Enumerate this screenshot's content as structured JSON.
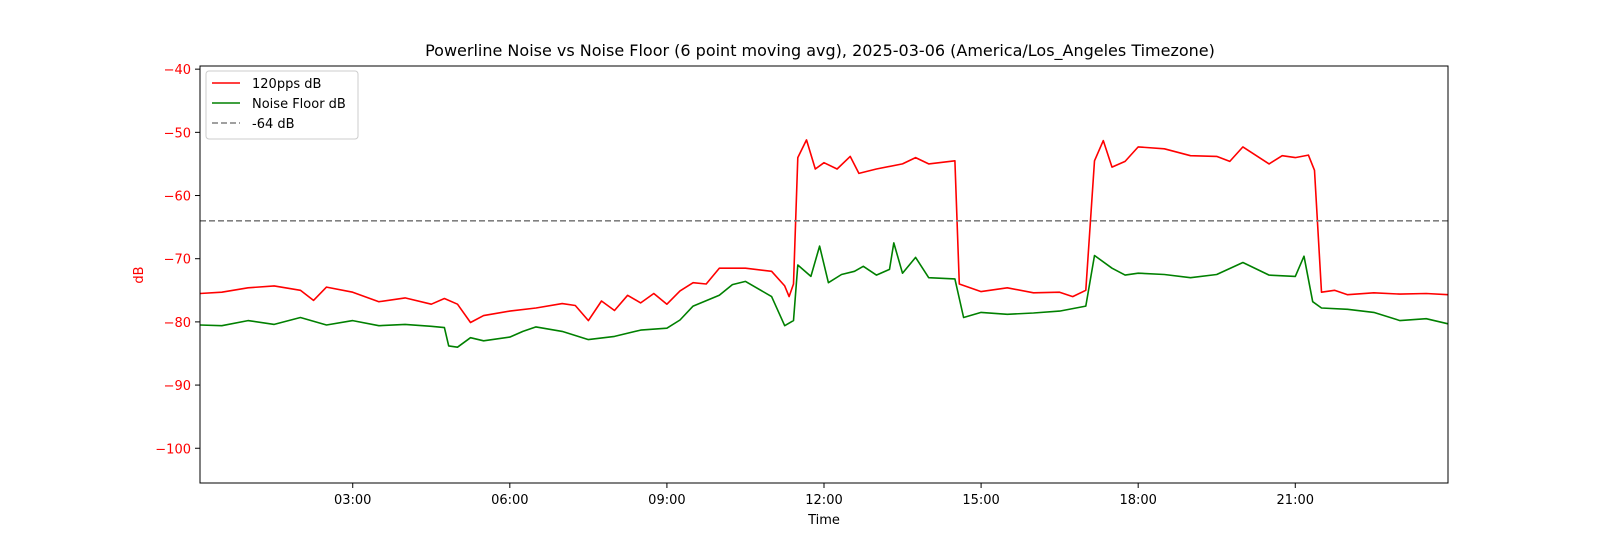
{
  "chart_data": {
    "type": "line",
    "title": "Powerline Noise vs Noise Floor (6 point moving avg), 2025-03-06 (America/Los_Angeles Timezone)",
    "xlabel": "Time",
    "ylabel": "dB",
    "xlim": [
      "00:05",
      "23:55"
    ],
    "ylim": [
      -105.5,
      -39.5
    ],
    "x_ticks": [
      "03:00",
      "06:00",
      "09:00",
      "12:00",
      "15:00",
      "18:00",
      "21:00"
    ],
    "y_ticks": [
      -40,
      -50,
      -60,
      -70,
      -80,
      -90,
      -100
    ],
    "y_tick_labels": [
      "−40",
      "−50",
      "−60",
      "−70",
      "−80",
      "−90",
      "−100"
    ],
    "grid": false,
    "legend_position": "top-left",
    "series": [
      {
        "name": "120pps dB",
        "color": "#ff0000",
        "style": "solid",
        "points": [
          [
            "00:05",
            -75.5
          ],
          [
            "00:30",
            -75.3
          ],
          [
            "01:00",
            -74.6
          ],
          [
            "01:30",
            -74.3
          ],
          [
            "02:00",
            -75.0
          ],
          [
            "02:15",
            -76.6
          ],
          [
            "02:30",
            -74.5
          ],
          [
            "03:00",
            -75.3
          ],
          [
            "03:30",
            -76.8
          ],
          [
            "04:00",
            -76.2
          ],
          [
            "04:30",
            -77.2
          ],
          [
            "04:45",
            -76.3
          ],
          [
            "05:00",
            -77.2
          ],
          [
            "05:15",
            -80.1
          ],
          [
            "05:30",
            -79.0
          ],
          [
            "06:00",
            -78.3
          ],
          [
            "06:30",
            -77.8
          ],
          [
            "07:00",
            -77.1
          ],
          [
            "07:15",
            -77.4
          ],
          [
            "07:30",
            -79.8
          ],
          [
            "07:45",
            -76.7
          ],
          [
            "08:00",
            -78.2
          ],
          [
            "08:15",
            -75.8
          ],
          [
            "08:30",
            -77.0
          ],
          [
            "08:45",
            -75.5
          ],
          [
            "09:00",
            -77.2
          ],
          [
            "09:15",
            -75.1
          ],
          [
            "09:30",
            -73.8
          ],
          [
            "09:45",
            -74.0
          ],
          [
            "10:00",
            -71.5
          ],
          [
            "10:30",
            -71.5
          ],
          [
            "11:00",
            -72.0
          ],
          [
            "11:15",
            -74.3
          ],
          [
            "11:20",
            -76.0
          ],
          [
            "11:25",
            -74.0
          ],
          [
            "11:30",
            -54.0
          ],
          [
            "11:40",
            -51.2
          ],
          [
            "11:50",
            -55.8
          ],
          [
            "12:00",
            -54.8
          ],
          [
            "12:15",
            -55.8
          ],
          [
            "12:30",
            -53.8
          ],
          [
            "12:40",
            -56.5
          ],
          [
            "13:00",
            -55.8
          ],
          [
            "13:30",
            -55.0
          ],
          [
            "13:45",
            -54.0
          ],
          [
            "14:00",
            -55.0
          ],
          [
            "14:30",
            -54.5
          ],
          [
            "14:35",
            -74.0
          ],
          [
            "15:00",
            -75.2
          ],
          [
            "15:30",
            -74.6
          ],
          [
            "16:00",
            -75.4
          ],
          [
            "16:30",
            -75.3
          ],
          [
            "16:45",
            -76.0
          ],
          [
            "17:00",
            -75.0
          ],
          [
            "17:10",
            -54.5
          ],
          [
            "17:20",
            -51.3
          ],
          [
            "17:30",
            -55.5
          ],
          [
            "17:45",
            -54.6
          ],
          [
            "18:00",
            -52.3
          ],
          [
            "18:30",
            -52.6
          ],
          [
            "19:00",
            -53.7
          ],
          [
            "19:30",
            -53.8
          ],
          [
            "19:45",
            -54.6
          ],
          [
            "20:00",
            -52.3
          ],
          [
            "20:30",
            -55.0
          ],
          [
            "20:45",
            -53.7
          ],
          [
            "21:00",
            -54.0
          ],
          [
            "21:15",
            -53.6
          ],
          [
            "21:22",
            -56.0
          ],
          [
            "21:30",
            -75.3
          ],
          [
            "21:45",
            -75.0
          ],
          [
            "22:00",
            -75.7
          ],
          [
            "22:30",
            -75.4
          ],
          [
            "23:00",
            -75.6
          ],
          [
            "23:30",
            -75.5
          ],
          [
            "23:55",
            -75.7
          ]
        ]
      },
      {
        "name": "Noise Floor dB",
        "color": "#008000",
        "style": "solid",
        "points": [
          [
            "00:05",
            -80.5
          ],
          [
            "00:30",
            -80.6
          ],
          [
            "01:00",
            -79.8
          ],
          [
            "01:30",
            -80.4
          ],
          [
            "02:00",
            -79.3
          ],
          [
            "02:30",
            -80.5
          ],
          [
            "03:00",
            -79.8
          ],
          [
            "03:30",
            -80.6
          ],
          [
            "04:00",
            -80.4
          ],
          [
            "04:30",
            -80.7
          ],
          [
            "04:45",
            -80.9
          ],
          [
            "04:50",
            -83.8
          ],
          [
            "05:00",
            -84.0
          ],
          [
            "05:15",
            -82.5
          ],
          [
            "05:30",
            -83.0
          ],
          [
            "06:00",
            -82.4
          ],
          [
            "06:15",
            -81.5
          ],
          [
            "06:30",
            -80.8
          ],
          [
            "07:00",
            -81.5
          ],
          [
            "07:30",
            -82.8
          ],
          [
            "08:00",
            -82.3
          ],
          [
            "08:30",
            -81.3
          ],
          [
            "09:00",
            -81.0
          ],
          [
            "09:15",
            -79.7
          ],
          [
            "09:30",
            -77.5
          ],
          [
            "10:00",
            -75.8
          ],
          [
            "10:15",
            -74.1
          ],
          [
            "10:30",
            -73.6
          ],
          [
            "11:00",
            -76.0
          ],
          [
            "11:15",
            -80.6
          ],
          [
            "11:25",
            -79.8
          ],
          [
            "11:30",
            -71.0
          ],
          [
            "11:45",
            -72.8
          ],
          [
            "11:55",
            -68.0
          ],
          [
            "12:05",
            -73.8
          ],
          [
            "12:20",
            -72.5
          ],
          [
            "12:35",
            -72.0
          ],
          [
            "12:45",
            -71.2
          ],
          [
            "13:00",
            -72.6
          ],
          [
            "13:15",
            -71.7
          ],
          [
            "13:20",
            -67.5
          ],
          [
            "13:30",
            -72.3
          ],
          [
            "13:45",
            -69.8
          ],
          [
            "14:00",
            -73.0
          ],
          [
            "14:30",
            -73.2
          ],
          [
            "14:40",
            -79.3
          ],
          [
            "15:00",
            -78.5
          ],
          [
            "15:30",
            -78.8
          ],
          [
            "16:00",
            -78.6
          ],
          [
            "16:30",
            -78.3
          ],
          [
            "17:00",
            -77.5
          ],
          [
            "17:10",
            -69.5
          ],
          [
            "17:30",
            -71.5
          ],
          [
            "17:45",
            -72.6
          ],
          [
            "18:00",
            -72.3
          ],
          [
            "18:30",
            -72.5
          ],
          [
            "19:00",
            -73.0
          ],
          [
            "19:30",
            -72.5
          ],
          [
            "20:00",
            -70.6
          ],
          [
            "20:30",
            -72.6
          ],
          [
            "21:00",
            -72.8
          ],
          [
            "21:10",
            -69.6
          ],
          [
            "21:20",
            -76.8
          ],
          [
            "21:30",
            -77.8
          ],
          [
            "22:00",
            -78.0
          ],
          [
            "22:30",
            -78.5
          ],
          [
            "23:00",
            -79.8
          ],
          [
            "23:30",
            -79.5
          ],
          [
            "23:55",
            -80.3
          ]
        ]
      },
      {
        "name": "-64 dB",
        "color": "#808080",
        "style": "dashed",
        "points": [
          [
            "00:05",
            -64
          ],
          [
            "23:55",
            -64
          ]
        ]
      }
    ]
  }
}
